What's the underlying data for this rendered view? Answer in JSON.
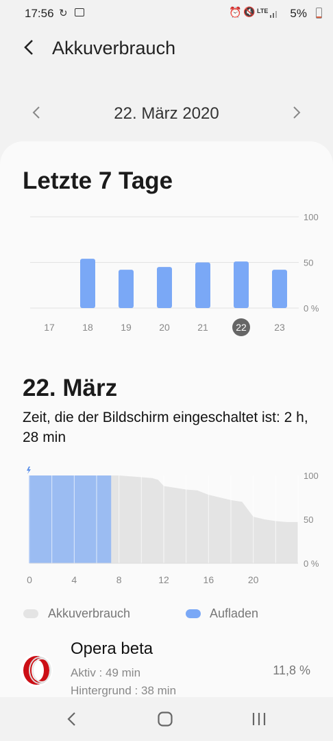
{
  "status_bar": {
    "time": "17:56",
    "icons": [
      "sync-icon",
      "image-icon",
      "alarm-icon",
      "mute-icon",
      "lte-icon",
      "signal-icon"
    ],
    "lte_label": "LTE",
    "battery_percent": "5%"
  },
  "header": {
    "title": "Akkuverbrauch"
  },
  "date_nav": {
    "label": "22. März 2020"
  },
  "weekly": {
    "title": "Letzte 7 Tage",
    "selected_day": "22",
    "y_labels": [
      "100",
      "50",
      "0 %"
    ]
  },
  "day_detail": {
    "title": "22. März",
    "screen_time": "Zeit, die der Bildschirm eingeschaltet ist: 2 h, 28 min",
    "y_labels": [
      "100",
      "50",
      "0 %"
    ],
    "x_labels": [
      "0",
      "4",
      "8",
      "12",
      "16",
      "20"
    ]
  },
  "legend": {
    "usage": "Akkuverbrauch",
    "charging": "Aufladen"
  },
  "apps": [
    {
      "name": "Opera beta",
      "active": "Aktiv : 49 min",
      "background": "Hintergrund : 38 min",
      "percent": "11,8 %"
    }
  ],
  "colors": {
    "bar": "#7aa8f6",
    "charge_area": "#9bbcf2",
    "usage_area": "#e4e4e4",
    "selected_day": "#666666"
  },
  "chart_data": [
    {
      "type": "bar",
      "categories": [
        "17",
        "18",
        "19",
        "20",
        "21",
        "22",
        "23"
      ],
      "values": [
        0,
        54,
        42,
        45,
        50,
        51,
        42
      ],
      "ylim": [
        0,
        100
      ]
    },
    {
      "type": "area",
      "x": [
        0,
        7.3,
        8,
        9,
        10,
        11,
        11.5,
        12,
        13,
        14,
        15,
        16,
        17,
        18,
        19,
        20,
        21,
        22,
        23,
        24
      ],
      "y": [
        100,
        100,
        100,
        99,
        98,
        97,
        95,
        88,
        86,
        84,
        83,
        78,
        75,
        72,
        70,
        53,
        50,
        48,
        47,
        47
      ],
      "charging_x_range": [
        0,
        7.3
      ],
      "xlim": [
        0,
        24
      ],
      "ylim": [
        0,
        100
      ]
    }
  ]
}
